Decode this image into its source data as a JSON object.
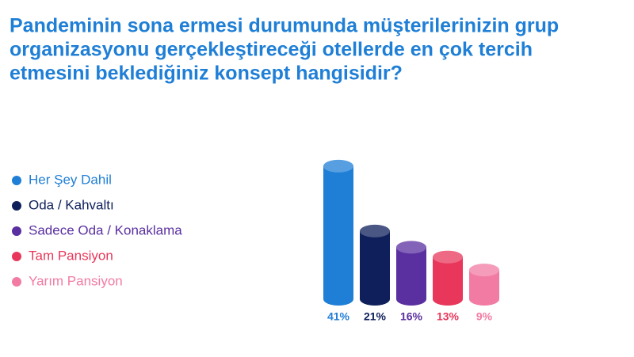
{
  "chart_data": {
    "type": "bar",
    "title": [
      "Pandeminin sona ermesi durumunda müşterilerinizin grup",
      "organizasyonu gerçekleştireceği otellerde en çok tercih",
      "etmesini beklediğiniz konsept hangisidir?"
    ],
    "series": [
      {
        "name": "Her Şey Dahil",
        "color": "#1f7fd6",
        "values": [
          41
        ],
        "value_labels": [
          "41%"
        ]
      },
      {
        "name": "Oda / Kahvaltı",
        "color": "#0e1f5b",
        "values": [
          21
        ],
        "value_labels": [
          "21%"
        ]
      },
      {
        "name": "Sadece Oda / Konaklama",
        "color": "#5a2fa0",
        "values": [
          16
        ],
        "value_labels": [
          "16%"
        ]
      },
      {
        "name": "Tam Pansiyon",
        "color": "#e8375a",
        "values": [
          13
        ],
        "value_labels": [
          "13%"
        ]
      },
      {
        "name": "Yarım Pansiyon",
        "color": "#f27ba3",
        "values": [
          9
        ],
        "value_labels": [
          "9%"
        ]
      }
    ]
  }
}
